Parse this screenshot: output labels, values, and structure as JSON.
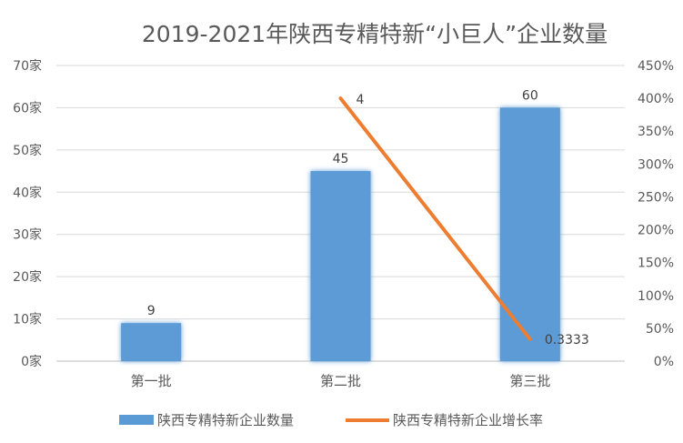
{
  "chart_data": {
    "type": "bar",
    "title": "2019-2021年陕西专精特新“小巨人”企业数量",
    "categories": [
      "第一批",
      "第二批",
      "第三批"
    ],
    "series": [
      {
        "name": "陕西专精特新企业数量",
        "type": "bar",
        "axis": "left",
        "values": [
          9,
          45,
          60
        ],
        "labels": [
          "9",
          "45",
          "60"
        ],
        "color": "#5b9bd5"
      },
      {
        "name": "陕西专精特新企业增长率",
        "type": "line",
        "axis": "right",
        "values": [
          null,
          4,
          0.3333
        ],
        "labels": [
          "",
          "4",
          "0.3333"
        ],
        "color": "#ed7d31"
      }
    ],
    "y_left": {
      "min": 0,
      "max": 70,
      "step": 10,
      "ticks": [
        "0家",
        "10家",
        "20家",
        "30家",
        "40家",
        "50家",
        "60家",
        "70家"
      ]
    },
    "y_right": {
      "min": 0,
      "max": 4.5,
      "step": 0.5,
      "ticks": [
        "0%",
        "50%",
        "100%",
        "150%",
        "200%",
        "250%",
        "300%",
        "350%",
        "400%",
        "450%"
      ]
    },
    "grid": true,
    "legend_position": "bottom"
  }
}
